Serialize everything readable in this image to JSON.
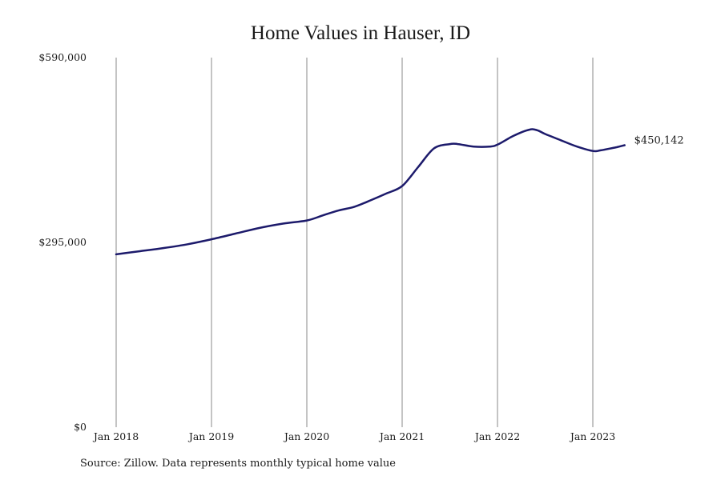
{
  "chart_data": {
    "type": "line",
    "title": "Home Values in Hauser, ID",
    "xlabel": "",
    "ylabel": "",
    "x_ticks": [
      "Jan 2018",
      "Jan 2019",
      "Jan 2020",
      "Jan 2021",
      "Jan 2022",
      "Jan 2023"
    ],
    "y_ticks": [
      "$0",
      "$295,000",
      "$590,000"
    ],
    "ylim": [
      0,
      590000
    ],
    "xlim": [
      "2018-01",
      "2023-05"
    ],
    "grid": "vertical",
    "line_color": "#1c1a6b",
    "end_label": "$450,142",
    "series": [
      {
        "name": "",
        "x": [
          "2018-01",
          "2018-04",
          "2018-07",
          "2018-10",
          "2019-01",
          "2019-04",
          "2019-07",
          "2019-10",
          "2020-01",
          "2020-03",
          "2020-05",
          "2020-07",
          "2020-09",
          "2020-11",
          "2021-01",
          "2021-03",
          "2021-05",
          "2021-07",
          "2021-08",
          "2021-10",
          "2021-12",
          "2022-01",
          "2022-03",
          "2022-05",
          "2022-06",
          "2022-07",
          "2022-09",
          "2022-11",
          "2023-01",
          "2023-02",
          "2023-04",
          "2023-05"
        ],
        "y": [
          276000,
          281000,
          286000,
          292000,
          300000,
          309000,
          318000,
          325000,
          330000,
          338000,
          346000,
          352000,
          362000,
          373000,
          385000,
          415000,
          445000,
          452000,
          452000,
          448000,
          448000,
          451000,
          465000,
          475000,
          474000,
          468000,
          458000,
          448000,
          441000,
          442000,
          447000,
          450142
        ]
      }
    ]
  },
  "source_note": "Source: Zillow. Data represents monthly typical home value"
}
